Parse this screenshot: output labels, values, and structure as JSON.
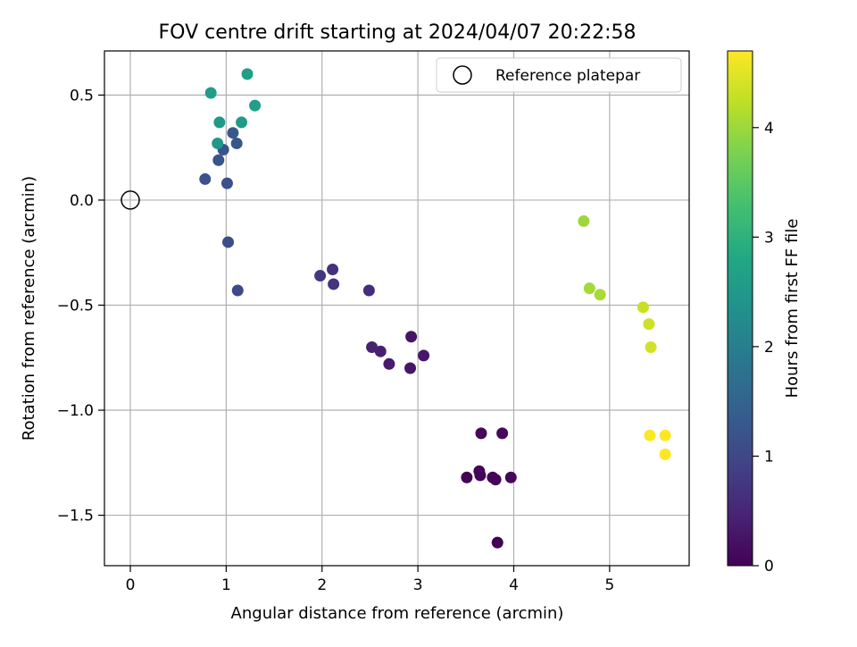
{
  "chart_data": {
    "type": "scatter",
    "title": "FOV centre drift starting at 2024/04/07 20:22:58",
    "xlabel": "Angular distance from reference (arcmin)",
    "ylabel": "Rotation from reference (arcmin)",
    "xlim": [
      -0.27,
      5.83
    ],
    "ylim": [
      -1.74,
      0.71
    ],
    "xticks": [
      0,
      1,
      2,
      3,
      4,
      5
    ],
    "yticks": [
      0.5,
      0.0,
      -0.5,
      -1.0,
      -1.5
    ],
    "xtick_labels": [
      "0",
      "1",
      "2",
      "3",
      "4",
      "5"
    ],
    "ytick_labels": [
      "0.5",
      "0.0",
      "−0.5",
      "−1.0",
      "−1.5"
    ],
    "grid": true,
    "legend": {
      "position": "top-right",
      "entries": [
        "Reference platepar"
      ]
    },
    "reference_point": {
      "x": 0,
      "y": 0
    },
    "colorbar": {
      "label": "Hours from first FF file",
      "colormap": "viridis",
      "min": 0,
      "max": 4.7,
      "ticks": [
        0,
        1,
        2,
        3,
        4
      ],
      "tick_labels": [
        "0",
        "1",
        "2",
        "3",
        "4"
      ]
    },
    "points": [
      {
        "x": 3.83,
        "y": -1.63,
        "hours": 0.0
      },
      {
        "x": 3.51,
        "y": -1.32,
        "hours": 0.02
      },
      {
        "x": 3.64,
        "y": -1.29,
        "hours": 0.04
      },
      {
        "x": 3.65,
        "y": -1.31,
        "hours": 0.05
      },
      {
        "x": 3.78,
        "y": -1.32,
        "hours": 0.06
      },
      {
        "x": 3.81,
        "y": -1.33,
        "hours": 0.07
      },
      {
        "x": 3.97,
        "y": -1.32,
        "hours": 0.08
      },
      {
        "x": 3.66,
        "y": -1.11,
        "hours": 0.09
      },
      {
        "x": 3.88,
        "y": -1.11,
        "hours": 0.1
      },
      {
        "x": 2.93,
        "y": -0.65,
        "hours": 0.25
      },
      {
        "x": 2.92,
        "y": -0.8,
        "hours": 0.28
      },
      {
        "x": 3.06,
        "y": -0.74,
        "hours": 0.3
      },
      {
        "x": 2.7,
        "y": -0.78,
        "hours": 0.35
      },
      {
        "x": 2.61,
        "y": -0.72,
        "hours": 0.4
      },
      {
        "x": 2.52,
        "y": -0.7,
        "hours": 0.42
      },
      {
        "x": 2.49,
        "y": -0.43,
        "hours": 0.6
      },
      {
        "x": 2.11,
        "y": -0.33,
        "hours": 0.66
      },
      {
        "x": 2.12,
        "y": -0.4,
        "hours": 0.7
      },
      {
        "x": 1.98,
        "y": -0.36,
        "hours": 0.75
      },
      {
        "x": 1.12,
        "y": -0.43,
        "hours": 1.05
      },
      {
        "x": 1.02,
        "y": -0.2,
        "hours": 1.1
      },
      {
        "x": 1.01,
        "y": 0.08,
        "hours": 1.15
      },
      {
        "x": 0.78,
        "y": 0.1,
        "hours": 1.18
      },
      {
        "x": 0.92,
        "y": 0.19,
        "hours": 1.2
      },
      {
        "x": 0.97,
        "y": 0.24,
        "hours": 1.22
      },
      {
        "x": 1.11,
        "y": 0.27,
        "hours": 1.25
      },
      {
        "x": 1.07,
        "y": 0.32,
        "hours": 1.28
      },
      {
        "x": 0.91,
        "y": 0.27,
        "hours": 2.5
      },
      {
        "x": 0.93,
        "y": 0.37,
        "hours": 2.52
      },
      {
        "x": 1.16,
        "y": 0.37,
        "hours": 2.55
      },
      {
        "x": 0.84,
        "y": 0.51,
        "hours": 2.58
      },
      {
        "x": 1.3,
        "y": 0.45,
        "hours": 2.6
      },
      {
        "x": 1.22,
        "y": 0.6,
        "hours": 2.62
      },
      {
        "x": 4.73,
        "y": -0.1,
        "hours": 4.0
      },
      {
        "x": 4.79,
        "y": -0.42,
        "hours": 4.05
      },
      {
        "x": 4.9,
        "y": -0.45,
        "hours": 4.08
      },
      {
        "x": 5.35,
        "y": -0.51,
        "hours": 4.3
      },
      {
        "x": 5.41,
        "y": -0.59,
        "hours": 4.35
      },
      {
        "x": 5.43,
        "y": -0.7,
        "hours": 4.38
      },
      {
        "x": 5.42,
        "y": -1.12,
        "hours": 4.68
      },
      {
        "x": 5.58,
        "y": -1.12,
        "hours": 4.7
      },
      {
        "x": 5.58,
        "y": -1.21,
        "hours": 4.7
      }
    ]
  }
}
